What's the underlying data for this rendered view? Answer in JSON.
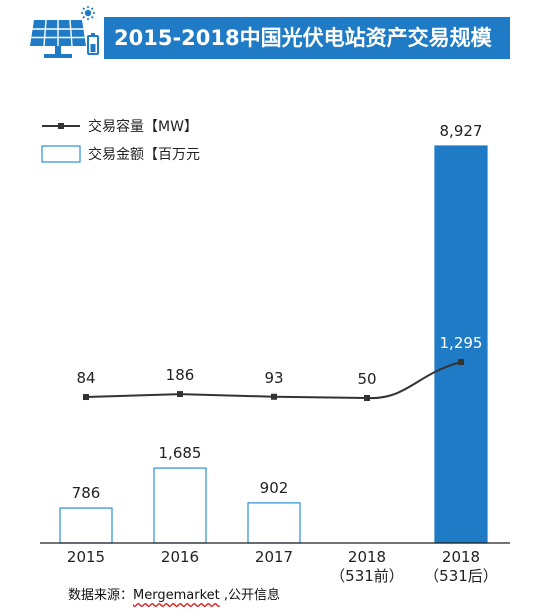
{
  "header": {
    "title": "2015-2018中国光伏电站资产交易规模",
    "icon": "solar-panel-icon",
    "accent_color": "#1f7bc6"
  },
  "chart_data": {
    "type": "bar",
    "categories": [
      "2015",
      "2016",
      "2017",
      "2018\n（531前）",
      "2018\n（531后）"
    ],
    "series": [
      {
        "name": "交易金额【百万元",
        "chart_type": "bar",
        "values": [
          786,
          1685,
          902,
          null,
          8927
        ],
        "labels": [
          "786",
          "1,685",
          "902",
          "",
          "8,927"
        ],
        "style": [
          "outline",
          "outline",
          "outline",
          "outline",
          "filled"
        ]
      },
      {
        "name": "交易容量【MW】",
        "chart_type": "line",
        "values": [
          84,
          186,
          93,
          50,
          1295
        ],
        "labels": [
          "84",
          "186",
          "93",
          "50",
          "1,295"
        ]
      }
    ],
    "xlabel": "",
    "ylabel": "",
    "legend_position": "top-left",
    "grid": false,
    "colors": {
      "bar_outline": "#2a8fd6",
      "bar_fill": "#1f7bc6",
      "line": "#333333"
    }
  },
  "source": {
    "prefix": "数据来源：",
    "brand": "Mergemarket",
    "suffix": " ,公开信息"
  }
}
